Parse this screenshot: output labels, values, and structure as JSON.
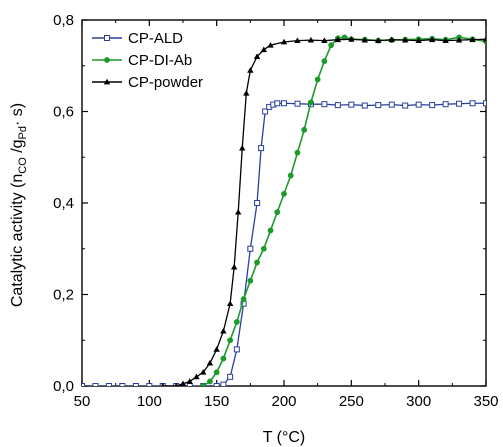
{
  "chart_data": {
    "type": "line",
    "xlabel": "T (°C)",
    "ylabel": {
      "prefix": "Catalytic activity (n",
      "sub1": "CO",
      "mid": " /g",
      "sub2": "Pd",
      "sub2b": "·",
      "suffix": " s)"
    },
    "xlim": [
      50,
      350
    ],
    "ylim": [
      0,
      0.8
    ],
    "xticks": [
      50,
      100,
      150,
      200,
      250,
      300,
      350
    ],
    "yticks": [
      0.0,
      0.2,
      0.4,
      0.6,
      0.8
    ],
    "xtick_labels": [
      "50",
      "100",
      "150",
      "200",
      "250",
      "300",
      "350"
    ],
    "ytick_labels": [
      "0,0",
      "0,2",
      "0,4",
      "0,6",
      "0,8"
    ],
    "legend_position": "top-left",
    "series": [
      {
        "name": "CP-ALD",
        "color": "#2b3f9e",
        "marker": "open-square",
        "x": [
          50,
          60,
          70,
          80,
          90,
          100,
          110,
          120,
          130,
          140,
          150,
          155,
          160,
          165,
          170,
          175,
          180,
          183,
          186,
          189,
          192,
          195,
          200,
          210,
          220,
          230,
          240,
          250,
          260,
          270,
          280,
          290,
          300,
          310,
          320,
          330,
          340,
          350
        ],
        "values": [
          0.0,
          0.0,
          0.0,
          0.0,
          0.0,
          0.0,
          0.0,
          0.0,
          0.0,
          0.0,
          0.0,
          0.003,
          0.02,
          0.08,
          0.18,
          0.3,
          0.4,
          0.52,
          0.6,
          0.61,
          0.615,
          0.618,
          0.618,
          0.617,
          0.616,
          0.616,
          0.614,
          0.615,
          0.613,
          0.614,
          0.615,
          0.613,
          0.615,
          0.614,
          0.616,
          0.617,
          0.618,
          0.618
        ]
      },
      {
        "name": "CP-DI-Ab",
        "color": "#1c9a2a",
        "marker": "filled-circle",
        "x": [
          140,
          145,
          150,
          155,
          160,
          165,
          170,
          175,
          180,
          185,
          190,
          195,
          200,
          205,
          210,
          215,
          220,
          225,
          230,
          235,
          240,
          245,
          250,
          260,
          270,
          280,
          290,
          300,
          310,
          320,
          330,
          340,
          350
        ],
        "values": [
          0.0,
          0.01,
          0.03,
          0.06,
          0.1,
          0.14,
          0.19,
          0.23,
          0.27,
          0.3,
          0.34,
          0.38,
          0.42,
          0.46,
          0.51,
          0.56,
          0.62,
          0.67,
          0.71,
          0.745,
          0.76,
          0.762,
          0.758,
          0.757,
          0.755,
          0.756,
          0.757,
          0.758,
          0.759,
          0.757,
          0.762,
          0.758,
          0.753
        ]
      },
      {
        "name": "CP-powder",
        "color": "#000000",
        "marker": "filled-triangle",
        "x": [
          110,
          120,
          125,
          130,
          135,
          140,
          145,
          150,
          155,
          160,
          163,
          166,
          169,
          172,
          175,
          180,
          185,
          190,
          200,
          210,
          220,
          230,
          240,
          250,
          260,
          270,
          280,
          290,
          300,
          310,
          320,
          330,
          340,
          350
        ],
        "values": [
          0.0,
          0.0,
          0.005,
          0.01,
          0.02,
          0.03,
          0.05,
          0.08,
          0.12,
          0.18,
          0.26,
          0.38,
          0.52,
          0.64,
          0.69,
          0.72,
          0.735,
          0.745,
          0.752,
          0.755,
          0.756,
          0.755,
          0.757,
          0.758,
          0.756,
          0.755,
          0.757,
          0.756,
          0.755,
          0.757,
          0.755,
          0.756,
          0.757,
          0.758
        ]
      }
    ]
  }
}
